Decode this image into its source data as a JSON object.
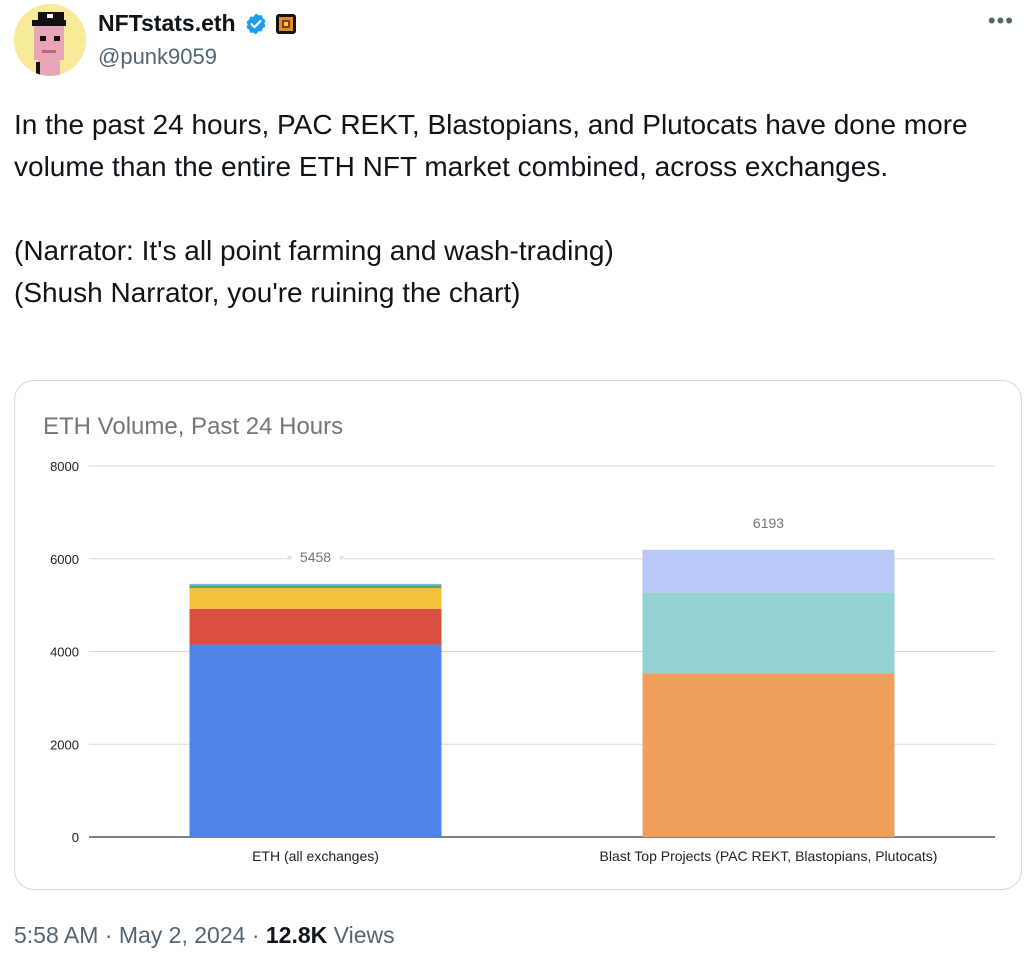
{
  "author": {
    "display_name": "NFTstats.eth",
    "handle": "@punk9059",
    "verified_color": "#1d9bf0",
    "avatar_bg": "#f5e99a",
    "avatar_icon": "pixel-punk-avatar-icon",
    "badge_icon": "affiliate-badge-icon"
  },
  "more_label": "•••",
  "tweet": {
    "lines": [
      "In the past 24 hours, PAC REKT, Blastopians, and Plutocats have done more volume than the entire ETH NFT market combined, across exchanges.",
      "",
      "(Narrator: It's all point farming and wash-trading)",
      "(Shush Narrator, you're ruining the chart)"
    ]
  },
  "chart_data": {
    "type": "bar",
    "stacked": true,
    "title": "ETH Volume, Past 24 Hours",
    "categories": [
      "ETH (all exchanges)",
      "Blast Top Projects (PAC REKT, Blastopians, Plutocats)"
    ],
    "ylim": [
      0,
      8000
    ],
    "yticks": [
      0,
      2000,
      4000,
      6000,
      8000
    ],
    "grid": true,
    "totals": [
      5458,
      6193
    ],
    "bars": [
      {
        "segments": [
          {
            "value": 4150,
            "color": "#5083e8"
          },
          {
            "value": 770,
            "color": "#d84f3f"
          },
          {
            "value": 450,
            "color": "#f3c13a"
          },
          {
            "value": 60,
            "color": "#58a55c"
          },
          {
            "value": 28,
            "color": "#8ab6f0"
          }
        ]
      },
      {
        "segments": [
          {
            "value": 3530,
            "color": "#f09f5a"
          },
          {
            "value": 1740,
            "color": "#93d1d5"
          },
          {
            "value": 923,
            "color": "#b7c9f6"
          }
        ]
      }
    ]
  },
  "footer": {
    "time": "5:58 AM",
    "separator": "·",
    "date": "May 2, 2024",
    "views_count": "12.8K",
    "views_label": "Views"
  }
}
